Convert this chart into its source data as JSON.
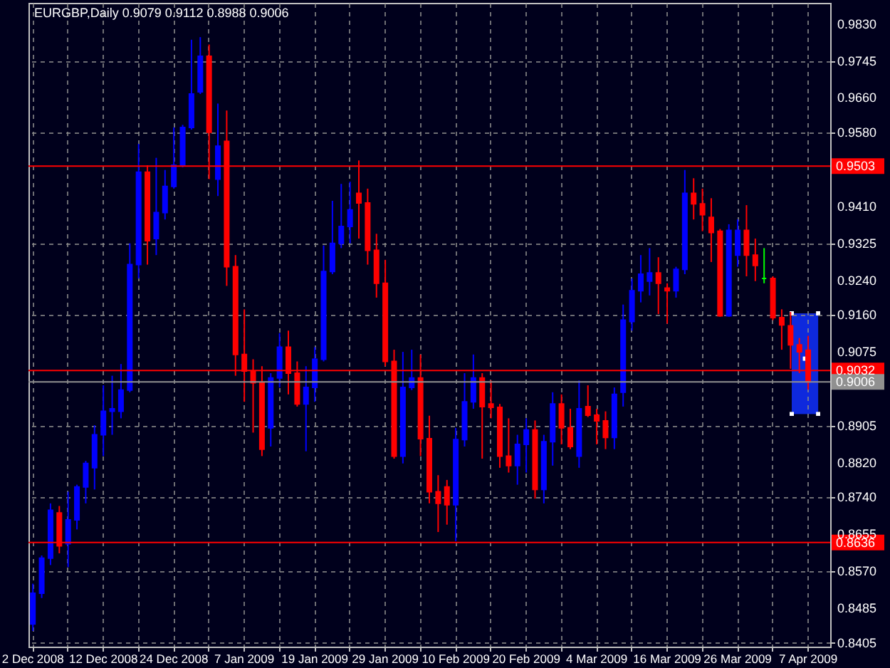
{
  "chart_data": {
    "type": "candlestick",
    "title": "EURGBP,Daily  0.9079 0.9112 0.8988 0.9006",
    "categories": [
      "2 Dec 2008",
      null,
      null,
      null,
      null,
      null,
      null,
      null,
      "12 Dec 2008",
      null,
      null,
      null,
      null,
      null,
      null,
      null,
      "24 Dec 2008",
      null,
      null,
      null,
      null,
      null,
      null,
      null,
      "7 Jan 2009",
      null,
      null,
      null,
      null,
      null,
      null,
      null,
      "19 Jan 2009",
      null,
      null,
      null,
      null,
      null,
      null,
      null,
      "29 Jan 2009",
      null,
      null,
      null,
      null,
      null,
      null,
      null,
      "10 Feb 2009",
      null,
      null,
      null,
      null,
      null,
      null,
      null,
      "20 Feb 2009",
      null,
      null,
      null,
      null,
      null,
      null,
      null,
      "4 Mar 2009",
      null,
      null,
      null,
      null,
      null,
      null,
      null,
      "16 Mar 2009",
      null,
      null,
      null,
      null,
      null,
      null,
      null,
      "26 Mar 2009",
      null,
      null,
      null,
      null,
      null,
      null,
      null,
      "7 Apr 2009"
    ],
    "ohlc": [
      [
        0.8448,
        0.8541,
        0.8432,
        0.8519
      ],
      [
        0.8519,
        0.8606,
        0.8508,
        0.86
      ],
      [
        0.86,
        0.8726,
        0.8584,
        0.871
      ],
      [
        0.8704,
        0.872,
        0.8611,
        0.8628
      ],
      [
        0.8633,
        0.8753,
        0.8579,
        0.8688
      ],
      [
        0.8688,
        0.8769,
        0.8666,
        0.8764
      ],
      [
        0.8764,
        0.8824,
        0.8726,
        0.8818
      ],
      [
        0.8808,
        0.8906,
        0.8758,
        0.8884
      ],
      [
        0.8884,
        0.8998,
        0.8835,
        0.8938
      ],
      [
        0.8938,
        0.902,
        0.8884,
        0.8944
      ],
      [
        0.8938,
        0.9047,
        0.8922,
        0.8987
      ],
      [
        0.8987,
        0.9325,
        0.8982,
        0.9276
      ],
      [
        0.9276,
        0.9554,
        0.9244,
        0.9489
      ],
      [
        0.9489,
        0.9505,
        0.9276,
        0.9331
      ],
      [
        0.9336,
        0.9522,
        0.9298,
        0.9396
      ],
      [
        0.9396,
        0.9494,
        0.938,
        0.9456
      ],
      [
        0.9456,
        0.9592,
        0.9451,
        0.9505
      ],
      [
        0.9505,
        0.9598,
        0.95,
        0.9592
      ],
      [
        0.9592,
        0.9794,
        0.9587,
        0.9669
      ],
      [
        0.9674,
        0.98,
        0.9669,
        0.9756
      ],
      [
        0.9756,
        0.9783,
        0.9473,
        0.9581
      ],
      [
        0.9473,
        0.9647,
        0.9434,
        0.9549
      ],
      [
        0.956,
        0.9631,
        0.9227,
        0.9271
      ],
      [
        0.9271,
        0.9298,
        0.902,
        0.9069
      ],
      [
        0.9069,
        0.9173,
        0.896,
        0.9031
      ],
      [
        0.9031,
        0.9058,
        0.8889,
        0.9004
      ],
      [
        0.9004,
        0.9042,
        0.8835,
        0.8851
      ],
      [
        0.89,
        0.9026,
        0.8857,
        0.9015
      ],
      [
        0.9015,
        0.9118,
        0.8993,
        0.9086
      ],
      [
        0.9086,
        0.9124,
        0.8977,
        0.9026
      ],
      [
        0.9026,
        0.9053,
        0.8949,
        0.8955
      ],
      [
        0.8955,
        0.9042,
        0.8846,
        0.8993
      ],
      [
        0.8993,
        0.9086,
        0.896,
        0.9058
      ],
      [
        0.9058,
        0.932,
        0.9053,
        0.926
      ],
      [
        0.926,
        0.9423,
        0.9254,
        0.9325
      ],
      [
        0.9325,
        0.9462,
        0.9314,
        0.9364
      ],
      [
        0.9364,
        0.9467,
        0.9325,
        0.9402
      ],
      [
        0.944,
        0.9516,
        0.9336,
        0.9418
      ],
      [
        0.9418,
        0.9451,
        0.9276,
        0.9309
      ],
      [
        0.9309,
        0.9347,
        0.92,
        0.9233
      ],
      [
        0.9233,
        0.9287,
        0.9042,
        0.9053
      ],
      [
        0.9053,
        0.908,
        0.8829,
        0.8835
      ],
      [
        0.8835,
        0.9075,
        0.8818,
        0.8993
      ],
      [
        0.8993,
        0.908,
        0.8987,
        0.9015
      ],
      [
        0.9015,
        0.9069,
        0.8835,
        0.8875
      ],
      [
        0.8875,
        0.8928,
        0.8726,
        0.8753
      ],
      [
        0.8753,
        0.8791,
        0.866,
        0.8726
      ],
      [
        0.8764,
        0.878,
        0.8677,
        0.8723
      ],
      [
        0.8723,
        0.89,
        0.8639,
        0.8873
      ],
      [
        0.8873,
        0.9026,
        0.8857,
        0.896
      ],
      [
        0.896,
        0.9069,
        0.8944,
        0.9015
      ],
      [
        0.9015,
        0.9026,
        0.8829,
        0.8949
      ],
      [
        0.8955,
        0.9009,
        0.8922,
        0.8947
      ],
      [
        0.8947,
        0.8955,
        0.8808,
        0.8835
      ],
      [
        0.8835,
        0.8922,
        0.8797,
        0.8813
      ],
      [
        0.8813,
        0.8884,
        0.8769,
        0.8862
      ],
      [
        0.8862,
        0.8922,
        0.8797,
        0.8895
      ],
      [
        0.8895,
        0.8917,
        0.8737,
        0.8758
      ],
      [
        0.8758,
        0.8884,
        0.8726,
        0.8868
      ],
      [
        0.8868,
        0.8982,
        0.8813,
        0.8955
      ],
      [
        0.8955,
        0.8977,
        0.8862,
        0.89
      ],
      [
        0.89,
        0.8944,
        0.8851,
        0.8857
      ],
      [
        0.8835,
        0.9009,
        0.8808,
        0.8944
      ],
      [
        0.8949,
        0.8998,
        0.8925,
        0.8929
      ],
      [
        0.8929,
        0.8944,
        0.8862,
        0.8916
      ],
      [
        0.8916,
        0.8938,
        0.8851,
        0.8878
      ],
      [
        0.8878,
        0.8993,
        0.8851,
        0.8977
      ],
      [
        0.8982,
        0.9184,
        0.8949,
        0.9148
      ],
      [
        0.9145,
        0.9244,
        0.9124,
        0.9216
      ],
      [
        0.9216,
        0.9298,
        0.9189,
        0.9254
      ],
      [
        0.9238,
        0.9314,
        0.9205,
        0.9257
      ],
      [
        0.9257,
        0.9293,
        0.9162,
        0.9233
      ],
      [
        0.9222,
        0.9233,
        0.914,
        0.9216
      ],
      [
        0.9216,
        0.9271,
        0.92,
        0.9265
      ],
      [
        0.9265,
        0.9494,
        0.9254,
        0.944
      ],
      [
        0.944,
        0.9475,
        0.938,
        0.9416
      ],
      [
        0.9416,
        0.9451,
        0.9353,
        0.9391
      ],
      [
        0.9385,
        0.9429,
        0.9282,
        0.935
      ],
      [
        0.9353,
        0.9358,
        0.9156,
        0.9158
      ],
      [
        0.9158,
        0.9369,
        0.9156,
        0.9355
      ],
      [
        0.9298,
        0.938,
        0.9271,
        0.9355
      ],
      [
        0.9355,
        0.9413,
        0.9249,
        0.9298
      ],
      [
        0.9298,
        0.9336,
        0.9238,
        0.9274
      ],
      [
        0.9244,
        0.9314,
        0.9233,
        0.9244
      ],
      [
        0.9244,
        0.9249,
        0.9148,
        0.9154
      ],
      [
        0.9154,
        0.9173,
        0.908,
        0.9137
      ],
      [
        0.9135,
        0.9167,
        0.9036,
        0.9091
      ],
      [
        0.9091,
        0.9107,
        0.9026,
        0.9075
      ],
      [
        0.9079,
        0.9112,
        0.8988,
        0.9006
      ]
    ],
    "colors": [
      "#0000ff",
      "#0000ff",
      "#0000ff",
      "#ff0000",
      "#0000ff",
      "#0000ff",
      "#0000ff",
      "#0000ff",
      "#0000ff",
      "#0000ff",
      "#0000ff",
      "#0000ff",
      "#0000ff",
      "#ff0000",
      "#0000ff",
      "#0000ff",
      "#0000ff",
      "#0000ff",
      "#0000ff",
      "#0000ff",
      "#ff0000",
      "#0000ff",
      "#ff0000",
      "#ff0000",
      "#ff0000",
      "#ff0000",
      "#ff0000",
      "#0000ff",
      "#0000ff",
      "#ff0000",
      "#ff0000",
      "#0000ff",
      "#0000ff",
      "#0000ff",
      "#0000ff",
      "#0000ff",
      "#0000ff",
      "#ff0000",
      "#ff0000",
      "#ff0000",
      "#ff0000",
      "#ff0000",
      "#0000ff",
      "#0000ff",
      "#ff0000",
      "#ff0000",
      "#ff0000",
      "#ff0000",
      "#0000ff",
      "#0000ff",
      "#0000ff",
      "#ff0000",
      "#ff0000",
      "#ff0000",
      "#ff0000",
      "#0000ff",
      "#0000ff",
      "#ff0000",
      "#0000ff",
      "#0000ff",
      "#ff0000",
      "#ff0000",
      "#0000ff",
      "#ff0000",
      "#ff0000",
      "#ff0000",
      "#0000ff",
      "#0000ff",
      "#0000ff",
      "#0000ff",
      "#0000ff",
      "#ff0000",
      "#ff0000",
      "#0000ff",
      "#0000ff",
      "#ff0000",
      "#ff0000",
      "#ff0000",
      "#ff0000",
      "#0000ff",
      "#0000ff",
      "#ff0000",
      "#ff0000",
      "#00ff00",
      "#ff0000",
      "#ff0000",
      "#ff0000",
      "#ff0000",
      "#ff0000"
    ],
    "ylim": [
      0.8396,
      0.9879
    ],
    "yticks": [
      0.8405,
      0.8485,
      {
        "value": 0.857,
        "label": "0.8570"
      },
      0.8655,
      {
        "value": 0.874,
        "label": "0.8740"
      },
      {
        "value": 0.882,
        "label": "0.8820"
      },
      0.8905,
      0.9075,
      {
        "value": 0.916,
        "label": "0.9160"
      },
      {
        "value": 0.924,
        "label": "0.9240"
      },
      0.9325,
      {
        "value": 0.941,
        "label": "0.9410"
      },
      {
        "value": 0.958,
        "label": "0.9580"
      },
      {
        "value": 0.966,
        "label": "0.9660"
      },
      0.9745,
      {
        "value": 0.983,
        "label": "0.9830"
      }
    ],
    "ref_lines": [
      {
        "axis": "y",
        "value": 0.9503,
        "label": "0.9503",
        "color": "#ff0000"
      },
      {
        "axis": "y",
        "value": 0.9032,
        "label": "0.9032",
        "color": "#ff0000"
      },
      {
        "axis": "y",
        "value": 0.8636,
        "label": "0.8636",
        "color": "#ff0000"
      },
      {
        "axis": "y",
        "value": 0.9006,
        "label": "0.9006",
        "color": "#909090"
      }
    ],
    "grid": true
  }
}
